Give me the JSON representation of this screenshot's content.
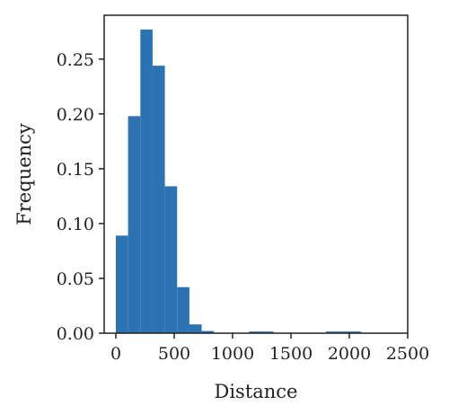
{
  "chart_data": {
    "type": "bar",
    "xlabel": "Distance",
    "ylabel": "Frequency",
    "xlim": [
      -100,
      2500
    ],
    "ylim": [
      0,
      0.29
    ],
    "grid": false,
    "xticks": [
      0,
      500,
      1000,
      1500,
      2000,
      2500
    ],
    "xtick_labels": [
      "0",
      "500",
      "1000",
      "1500",
      "2000",
      "2500"
    ],
    "yticks": [
      0.0,
      0.05,
      0.1,
      0.15,
      0.2,
      0.25
    ],
    "ytick_labels": [
      "0.00",
      "0.05",
      "0.10",
      "0.15",
      "0.20",
      "0.25"
    ],
    "bins": [
      {
        "x0": 0,
        "x1": 105,
        "value": 0.089
      },
      {
        "x0": 105,
        "x1": 210,
        "value": 0.198
      },
      {
        "x0": 210,
        "x1": 315,
        "value": 0.277
      },
      {
        "x0": 315,
        "x1": 420,
        "value": 0.244
      },
      {
        "x0": 420,
        "x1": 525,
        "value": 0.134
      },
      {
        "x0": 525,
        "x1": 630,
        "value": 0.042
      },
      {
        "x0": 630,
        "x1": 735,
        "value": 0.008
      },
      {
        "x0": 735,
        "x1": 840,
        "value": 0.002
      },
      {
        "x0": 1140,
        "x1": 1350,
        "value": 0.0015
      },
      {
        "x0": 1800,
        "x1": 2100,
        "value": 0.0015
      }
    ],
    "color": "#2c73b4"
  }
}
